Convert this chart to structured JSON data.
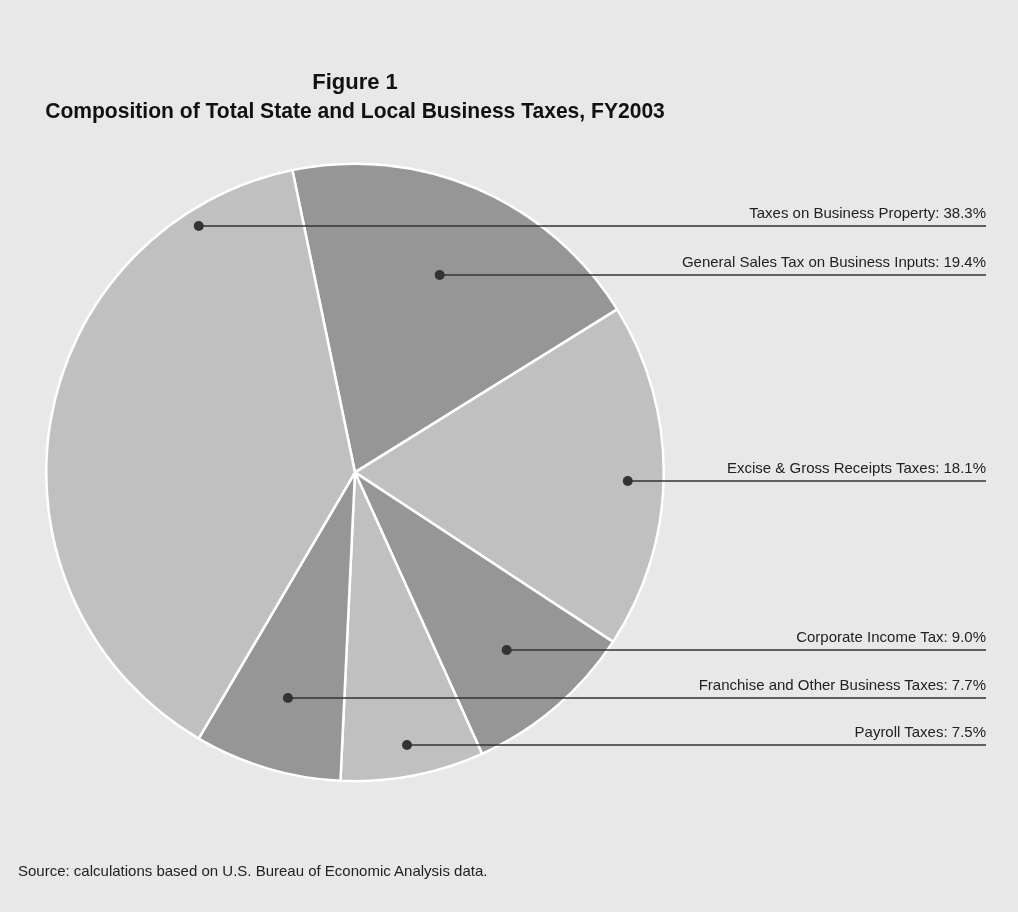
{
  "chart_data": {
    "type": "pie",
    "title": "Figure 1",
    "subtitle": "Composition of Total State and Local Business Taxes, FY2003",
    "categories": [
      "General Sales Tax on Business Inputs",
      "Excise & Gross Receipts Taxes",
      "Corporate Income Tax",
      "Payroll Taxes",
      "Franchise and Other Business Taxes",
      "Taxes on Business Property"
    ],
    "values": [
      19.4,
      18.1,
      9.0,
      7.5,
      7.7,
      38.3
    ],
    "value_labels": [
      "19.4%",
      "18.1%",
      "9.0%",
      "7.5%",
      "7.7%",
      "38.3%"
    ],
    "colors": [
      "#969696",
      "#c0c0c0",
      "#969696",
      "#c0c0c0",
      "#969696",
      "#c0c0c0"
    ],
    "annotations": [
      "Source: calculations based on U.S. Bureau of Economic Analysis data."
    ]
  }
}
